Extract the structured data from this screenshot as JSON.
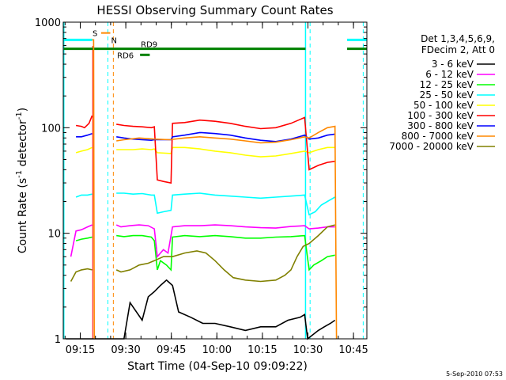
{
  "chart_data": {
    "type": "line",
    "title": "HESSI Observing Summary Count Rates",
    "xlabel": "Start Time (04-Sep-10 09:09:22)",
    "ylabel": "Count Rate (s",
    "ylabel_sup1": "-1",
    "ylabel_mid": " detector",
    "ylabel_sup2": "-1",
    "ylabel_end": ")",
    "y_scale": "log",
    "ylim": [
      1,
      1000
    ],
    "xlim_minutes": [
      0,
      100
    ],
    "x_ticks": [
      {
        "label": "09:15",
        "minute": 5.6
      },
      {
        "label": "09:30",
        "minute": 20.6
      },
      {
        "label": "09:45",
        "minute": 35.6
      },
      {
        "label": "10:00",
        "minute": 50.6
      },
      {
        "label": "10:15",
        "minute": 65.6
      },
      {
        "label": "10:30",
        "minute": 80.6
      },
      {
        "label": "10:45",
        "minute": 95.6
      }
    ],
    "y_ticks": [
      {
        "label": "1",
        "value": 1
      },
      {
        "label": "10",
        "value": 10
      },
      {
        "label": "100",
        "value": 100
      },
      {
        "label": "1000",
        "value": 1000
      }
    ],
    "legend_header": [
      "Det 1,3,4,5,6,9,",
      "FDecim 2, Att 0"
    ],
    "legend_placement": "right",
    "series": [
      {
        "name": "3 - 6 keV",
        "color": "#000000",
        "data": [
          [
            0.8,
            1
          ],
          [
            2.5,
            1
          ],
          [
            3.5,
            1
          ],
          [
            4.8,
            1
          ],
          [
            6.5,
            1
          ],
          [
            8.5,
            1
          ],
          [
            10,
            1
          ],
          [
            11.5,
            1
          ],
          [
            12.3,
            1
          ],
          [
            17.5,
            1
          ],
          [
            20,
            1
          ],
          [
            22,
            2.2
          ],
          [
            26,
            1.5
          ],
          [
            28,
            2.5
          ],
          [
            30,
            2.8
          ],
          [
            32,
            3.2
          ],
          [
            34,
            3.6
          ],
          [
            36,
            3.2
          ],
          [
            38,
            1.8
          ],
          [
            42,
            1.6
          ],
          [
            46,
            1.4
          ],
          [
            50,
            1.4
          ],
          [
            55,
            1.3
          ],
          [
            60,
            1.2
          ],
          [
            65,
            1.3
          ],
          [
            70,
            1.3
          ],
          [
            74,
            1.5
          ],
          [
            78,
            1.6
          ],
          [
            79.5,
            1.7
          ],
          [
            80.5,
            1
          ],
          [
            84,
            1.2
          ],
          [
            86,
            1.3
          ],
          [
            88,
            1.4
          ],
          [
            89.5,
            1.5
          ]
        ]
      },
      {
        "name": "6 - 12 keV",
        "color": "#ff00ff",
        "data": [
          [
            2.5,
            6
          ],
          [
            4.2,
            10.5
          ],
          [
            6,
            10.8
          ],
          [
            8,
            11.5
          ],
          [
            9.5,
            12
          ],
          [
            17.5,
            12
          ],
          [
            19,
            11.5
          ],
          [
            22,
            11.8
          ],
          [
            25,
            12
          ],
          [
            28,
            11.8
          ],
          [
            30,
            11
          ],
          [
            31,
            6
          ],
          [
            33,
            7
          ],
          [
            34.5,
            6.5
          ],
          [
            36,
            11.5
          ],
          [
            40,
            11.8
          ],
          [
            45,
            11.8
          ],
          [
            50,
            12
          ],
          [
            55,
            11.8
          ],
          [
            60,
            11.5
          ],
          [
            65,
            11.3
          ],
          [
            70,
            11.2
          ],
          [
            75,
            11.6
          ],
          [
            79.5,
            11.8
          ],
          [
            81,
            11
          ],
          [
            84,
            11.2
          ],
          [
            87,
            11.5
          ],
          [
            89.5,
            11.5
          ]
        ]
      },
      {
        "name": "12 - 25 keV",
        "color": "#00ff00",
        "data": [
          [
            4.2,
            8.5
          ],
          [
            6,
            8.8
          ],
          [
            8,
            9
          ],
          [
            9.5,
            9.2
          ],
          [
            17.5,
            9.5
          ],
          [
            20,
            9.3
          ],
          [
            23,
            9.5
          ],
          [
            26,
            9.5
          ],
          [
            29,
            9.2
          ],
          [
            30,
            8.5
          ],
          [
            31,
            4.5
          ],
          [
            32,
            5.5
          ],
          [
            34,
            5
          ],
          [
            35.5,
            4.5
          ],
          [
            36,
            9.2
          ],
          [
            40,
            9.5
          ],
          [
            45,
            9.3
          ],
          [
            50,
            9.5
          ],
          [
            55,
            9.3
          ],
          [
            60,
            9
          ],
          [
            65,
            9
          ],
          [
            70,
            9.2
          ],
          [
            75,
            9.3
          ],
          [
            79.5,
            9.5
          ],
          [
            81,
            4.5
          ],
          [
            82.5,
            5
          ],
          [
            85,
            5.5
          ],
          [
            87,
            6
          ],
          [
            89.5,
            6.2
          ]
        ]
      },
      {
        "name": "25 - 50 keV",
        "color": "#00ffff",
        "data": [
          [
            4.2,
            22
          ],
          [
            6,
            23
          ],
          [
            8,
            23
          ],
          [
            9.5,
            23.5
          ],
          [
            17.5,
            24
          ],
          [
            20,
            24
          ],
          [
            23,
            23.5
          ],
          [
            26,
            23.8
          ],
          [
            29,
            23
          ],
          [
            30,
            23
          ],
          [
            31,
            15.5
          ],
          [
            33,
            16
          ],
          [
            35.5,
            16.5
          ],
          [
            36,
            23
          ],
          [
            40,
            23.5
          ],
          [
            45,
            24
          ],
          [
            50,
            23
          ],
          [
            55,
            22.5
          ],
          [
            60,
            22
          ],
          [
            65,
            21.5
          ],
          [
            70,
            22
          ],
          [
            75,
            22.5
          ],
          [
            79.5,
            23
          ],
          [
            81,
            15
          ],
          [
            83,
            16
          ],
          [
            85,
            18.5
          ],
          [
            87,
            20
          ],
          [
            89.5,
            22
          ]
        ]
      },
      {
        "name": "50 - 100 keV",
        "color": "#ffff00",
        "data": [
          [
            4.2,
            58
          ],
          [
            6,
            60
          ],
          [
            8,
            62
          ],
          [
            9.5,
            65
          ],
          [
            17.5,
            62
          ],
          [
            20,
            62
          ],
          [
            23,
            62
          ],
          [
            26,
            63
          ],
          [
            29,
            62
          ],
          [
            30,
            63
          ],
          [
            31,
            58
          ],
          [
            35.5,
            57
          ],
          [
            36,
            65
          ],
          [
            40,
            65
          ],
          [
            45,
            63
          ],
          [
            50,
            60
          ],
          [
            55,
            58
          ],
          [
            60,
            55
          ],
          [
            65,
            53
          ],
          [
            70,
            54
          ],
          [
            75,
            57
          ],
          [
            79.5,
            60
          ],
          [
            81,
            58
          ],
          [
            84,
            62
          ],
          [
            87,
            65
          ],
          [
            89.5,
            65
          ]
        ]
      },
      {
        "name": "100 - 300 keV",
        "color": "#ff0000",
        "data": [
          [
            4.2,
            105
          ],
          [
            6,
            103
          ],
          [
            7,
            100
          ],
          [
            8.5,
            110
          ],
          [
            9.5,
            130
          ],
          [
            17.5,
            108
          ],
          [
            20,
            105
          ],
          [
            23,
            103
          ],
          [
            26,
            102
          ],
          [
            29,
            100
          ],
          [
            30,
            102
          ],
          [
            31,
            32
          ],
          [
            33,
            31
          ],
          [
            35.5,
            30
          ],
          [
            36,
            110
          ],
          [
            40,
            112
          ],
          [
            45,
            118
          ],
          [
            50,
            115
          ],
          [
            55,
            110
          ],
          [
            60,
            103
          ],
          [
            65,
            98
          ],
          [
            70,
            100
          ],
          [
            75,
            110
          ],
          [
            79.5,
            125
          ],
          [
            81,
            40
          ],
          [
            84,
            44
          ],
          [
            87,
            47
          ],
          [
            89.5,
            48
          ]
        ]
      },
      {
        "name": "300 - 800 keV",
        "color": "#0000ff",
        "data": [
          [
            4.2,
            82
          ],
          [
            6,
            82
          ],
          [
            8,
            85
          ],
          [
            9.5,
            88
          ],
          [
            17.5,
            82
          ],
          [
            20,
            80
          ],
          [
            23,
            78
          ],
          [
            26,
            77
          ],
          [
            29,
            76
          ],
          [
            30,
            77
          ],
          [
            35.5,
            77
          ],
          [
            36,
            82
          ],
          [
            40,
            85
          ],
          [
            45,
            90
          ],
          [
            50,
            88
          ],
          [
            55,
            85
          ],
          [
            60,
            80
          ],
          [
            65,
            76
          ],
          [
            70,
            74
          ],
          [
            75,
            78
          ],
          [
            79.5,
            85
          ],
          [
            81,
            78
          ],
          [
            84,
            80
          ],
          [
            87,
            85
          ],
          [
            89.5,
            87
          ]
        ]
      },
      {
        "name": "800 - 7000 keV",
        "color": "#ff8800",
        "data": [
          [
            9.5,
            680
          ],
          [
            10,
            680
          ],
          [
            10.2,
            1
          ],
          [
            17.5,
            75
          ],
          [
            20,
            77
          ],
          [
            25,
            80
          ],
          [
            30,
            78
          ],
          [
            35,
            77
          ],
          [
            40,
            80
          ],
          [
            45,
            82
          ],
          [
            50,
            80
          ],
          [
            55,
            78
          ],
          [
            60,
            75
          ],
          [
            65,
            72
          ],
          [
            70,
            73
          ],
          [
            75,
            77
          ],
          [
            79.5,
            82
          ],
          [
            81,
            80
          ],
          [
            84,
            90
          ],
          [
            87,
            100
          ],
          [
            89.5,
            103
          ],
          [
            90,
            1
          ]
        ]
      },
      {
        "name": "7000 - 20000 keV",
        "color": "#808000",
        "data": [
          [
            2.5,
            3.5
          ],
          [
            4.2,
            4.3
          ],
          [
            6,
            4.5
          ],
          [
            8,
            4.6
          ],
          [
            9.5,
            4.5
          ],
          [
            17.5,
            4.5
          ],
          [
            19,
            4.3
          ],
          [
            22,
            4.5
          ],
          [
            25,
            5
          ],
          [
            28,
            5.2
          ],
          [
            30,
            5.5
          ],
          [
            33,
            6
          ],
          [
            36,
            6
          ],
          [
            40,
            6.5
          ],
          [
            44,
            6.8
          ],
          [
            47,
            6.5
          ],
          [
            50,
            5.5
          ],
          [
            53,
            4.5
          ],
          [
            56,
            3.8
          ],
          [
            60,
            3.6
          ],
          [
            65,
            3.5
          ],
          [
            70,
            3.6
          ],
          [
            73,
            4
          ],
          [
            75,
            4.5
          ],
          [
            77,
            6
          ],
          [
            79,
            7.5
          ],
          [
            81,
            8
          ],
          [
            84,
            9.5
          ],
          [
            87,
            11.5
          ],
          [
            89.5,
            12
          ]
        ]
      }
    ],
    "annotations": {
      "s_label": "S",
      "n_label": "N",
      "rd9_label": "RD9",
      "rd6_label": "RD6",
      "saa_segments": [
        [
          0.2,
          9.5
        ],
        [
          93.5,
          100
        ]
      ],
      "saa_level": 680,
      "s_segment": [
        12.5,
        15.5
      ],
      "s_level": 790,
      "rd9_segments": [
        [
          0.2,
          79.8
        ],
        [
          93.5,
          100
        ]
      ],
      "rd9_level": 560,
      "rd6_segments": [
        [
          25.3,
          28.5
        ]
      ],
      "rd6_level": 490,
      "red_line_at": 9.7,
      "cyan_solid_lines": [
        0.2,
        79.8
      ],
      "cyan_dashed_lines": [
        14.7,
        81.3,
        98.8
      ],
      "orange_dashed_lines": [
        16.5
      ],
      "saa_color": "#00ffff",
      "s_color": "#ff8800",
      "n_color": "#00ffff",
      "rd_color": "#008000",
      "red_line_color": "#ff0000"
    }
  },
  "footer": {
    "timestamp": "5-Sep-2010 07:53"
  }
}
